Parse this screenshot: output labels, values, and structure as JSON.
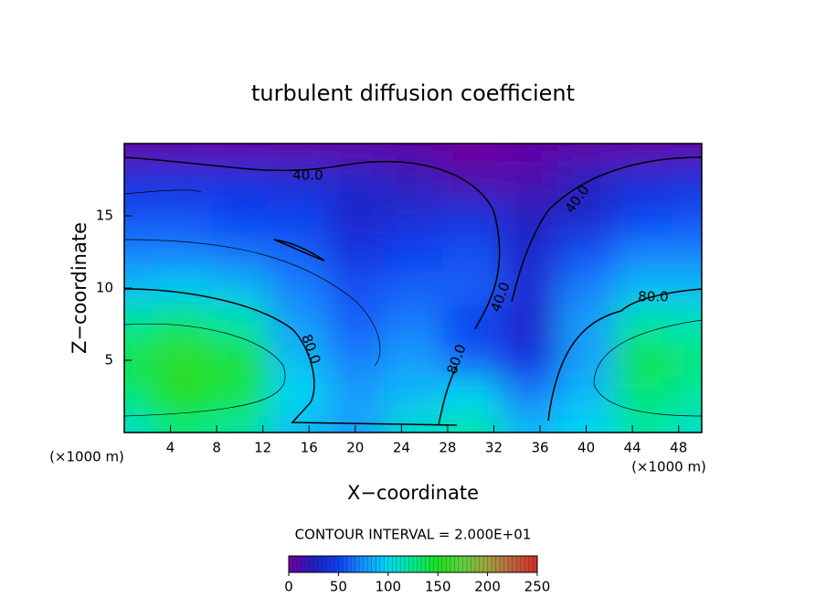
{
  "chart_data": {
    "type": "contour",
    "title": "turbulent diffusion coefficient",
    "x_label": "X−coordinate",
    "y_label": "Z−coordinate",
    "x_unit_labels": [
      "(×1000 m)",
      "(×1000 m)"
    ],
    "contour_interval": "CONTOUR INTERVAL = 2.000E+01",
    "contour_labels": [
      "40.0",
      "40.0",
      "40.0",
      "80.0",
      "80.0",
      "80.0"
    ],
    "xlim": [
      0,
      50
    ],
    "xticks": [
      4,
      8,
      12,
      16,
      20,
      24,
      28,
      32,
      36,
      40,
      44,
      48
    ],
    "ylim": [
      0,
      20
    ],
    "yticks": [
      5,
      10,
      15
    ],
    "field": {
      "x": [
        0,
        5,
        10,
        15,
        20,
        25,
        30,
        35,
        40,
        45,
        50
      ],
      "y": [
        0,
        2.5,
        5,
        7.5,
        10,
        12.5,
        15,
        17.5,
        20
      ],
      "z": [
        [
          110,
          130,
          120,
          90,
          80,
          110,
          120,
          90,
          100,
          120,
          110
        ],
        [
          130,
          150,
          140,
          100,
          80,
          90,
          100,
          70,
          90,
          130,
          120
        ],
        [
          140,
          155,
          145,
          90,
          70,
          80,
          60,
          40,
          80,
          140,
          130
        ],
        [
          125,
          135,
          120,
          80,
          60,
          70,
          50,
          30,
          80,
          120,
          115
        ],
        [
          90,
          95,
          90,
          70,
          55,
          60,
          60,
          35,
          70,
          90,
          90
        ],
        [
          70,
          70,
          65,
          60,
          40,
          50,
          55,
          30,
          55,
          70,
          70
        ],
        [
          55,
          55,
          50,
          50,
          30,
          35,
          40,
          25,
          30,
          50,
          55
        ],
        [
          40,
          40,
          40,
          35,
          30,
          20,
          10,
          10,
          25,
          35,
          40
        ],
        [
          5,
          5,
          5,
          5,
          5,
          5,
          0,
          5,
          5,
          5,
          5
        ]
      ]
    },
    "colorbar": {
      "lim": [
        0,
        250
      ],
      "ticks": [
        0,
        50,
        100,
        150,
        200,
        250
      ],
      "colors": [
        "#7000a0",
        "#2020c0",
        "#1040f0",
        "#1890ff",
        "#00d8f0",
        "#00e890",
        "#20e020",
        "#60d040",
        "#a0a040",
        "#c06040",
        "#d03020"
      ]
    }
  }
}
